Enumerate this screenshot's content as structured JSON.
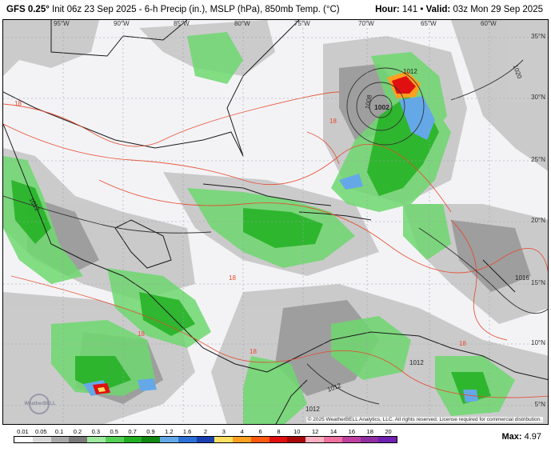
{
  "header": {
    "model": "GFS 0.25°",
    "init": "Init 06z 23 Sep 2025",
    "description": "6-h Precip (in.), MSLP (hPa), 850mb Temp. (°C)",
    "hour_label": "Hour:",
    "hour": "141",
    "valid_label": "Valid:",
    "valid": "03z Mon 29 Sep 2025"
  },
  "lon_labels": [
    "95°W",
    "90°W",
    "85°W",
    "80°W",
    "75°W",
    "70°W",
    "65°W",
    "60°W"
  ],
  "lat_labels": [
    "35°N",
    "30°N",
    "25°N",
    "20°N",
    "15°N",
    "10°N",
    "5°N"
  ],
  "isobar_labels": [
    "1012",
    "1008",
    "1002",
    "1020",
    "1012",
    "1016",
    "1012",
    "1012",
    "1012"
  ],
  "temp_labels": [
    "18",
    "18",
    "18",
    "18",
    "18",
    "18"
  ],
  "watermark": "WeatherBELL",
  "copyright": "© 2025 WeatherBELL Analytics, LLC. All rights reserved. License required for commercial distribution.",
  "legend": {
    "ticks": [
      "0.01",
      "0.05",
      "0.1",
      "0.2",
      "0.3",
      "0.5",
      "0.7",
      "0.9",
      "1.2",
      "1.6",
      "2",
      "3",
      "4",
      "6",
      "8",
      "10",
      "12",
      "14",
      "16",
      "18",
      "20"
    ],
    "colors": [
      "#ffffff",
      "#d8d8d8",
      "#a9a9a9",
      "#7a7a7a",
      "#9fe89f",
      "#55d055",
      "#22b022",
      "#118811",
      "#64a8e8",
      "#2b70d8",
      "#1a3fb0",
      "#ffe060",
      "#ffa020",
      "#ff5a10",
      "#e01010",
      "#a80808",
      "#ffb0c0",
      "#f070a0",
      "#c040a0",
      "#9030a0",
      "#7020b0"
    ]
  },
  "max_label": "Max:",
  "max_value": "4.97",
  "colors": {
    "coast": "#1a1a1a",
    "isotherm": "#e8482a",
    "isobar": "#333333"
  }
}
